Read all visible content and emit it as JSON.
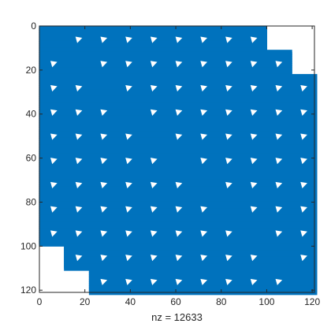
{
  "chart_data": {
    "type": "spy",
    "description_label": "nz = 12633",
    "xlabel": "nz = 12633",
    "ylabel": "",
    "title": "",
    "matrix_size": 121,
    "nonzeros": 12633,
    "xlim": [
      0,
      121
    ],
    "ylim": [
      0,
      121
    ],
    "y_reversed": true,
    "x_ticks": [
      0,
      20,
      40,
      60,
      80,
      100,
      120
    ],
    "y_ticks": [
      0,
      20,
      40,
      60,
      80,
      100,
      120
    ],
    "x_tick_labels": [
      "0",
      "20",
      "40",
      "60",
      "80",
      "100",
      "120"
    ],
    "y_tick_labels": [
      "0",
      "20",
      "40",
      "60",
      "80",
      "100",
      "120"
    ],
    "block_size": 11,
    "block_count": 11,
    "band_half_width_blocks": 8,
    "marker_color": "#0072BD",
    "grid": false
  }
}
